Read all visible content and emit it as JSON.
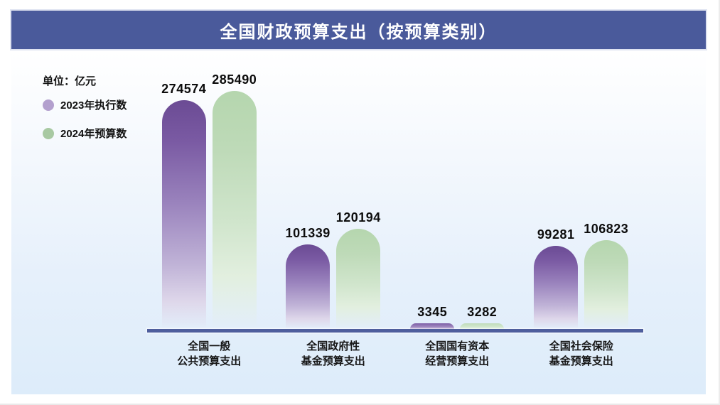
{
  "title": "全国财政预算支出（按预算类别）",
  "legend": {
    "unit_label": "单位：亿元",
    "items": [
      {
        "label": "2023年执行数",
        "color": "#b3a0ce"
      },
      {
        "label": "2024年预算数",
        "color": "#a8c9a2"
      }
    ]
  },
  "chart_data": {
    "type": "bar",
    "title": "全国财政预算支出（按预算类别）",
    "unit": "亿元",
    "categories": [
      "全国一般\n公共预算支出",
      "全国政府性\n基金预算支出",
      "全国国有资本\n经营预算支出",
      "全国社会保险\n基金预算支出"
    ],
    "series": [
      {
        "name": "2023年执行数",
        "color": "#6b4b94",
        "values": [
          274574,
          101339,
          3345,
          99281
        ]
      },
      {
        "name": "2024年预算数",
        "color": "#b5d6ae",
        "values": [
          285490,
          120194,
          3282,
          106823
        ]
      }
    ],
    "ylim": [
      0,
      300000
    ],
    "grid": false,
    "value_labels": true,
    "legend_position": "top-left"
  },
  "colors": {
    "title_bar": "#4a5a9b",
    "title_text": "#ffffff",
    "axis_line": "#4e5e9d",
    "background_bottom": "#ddecfa",
    "bar_purple_top": "#6b4b94",
    "bar_green_top": "#b5d6ae"
  }
}
